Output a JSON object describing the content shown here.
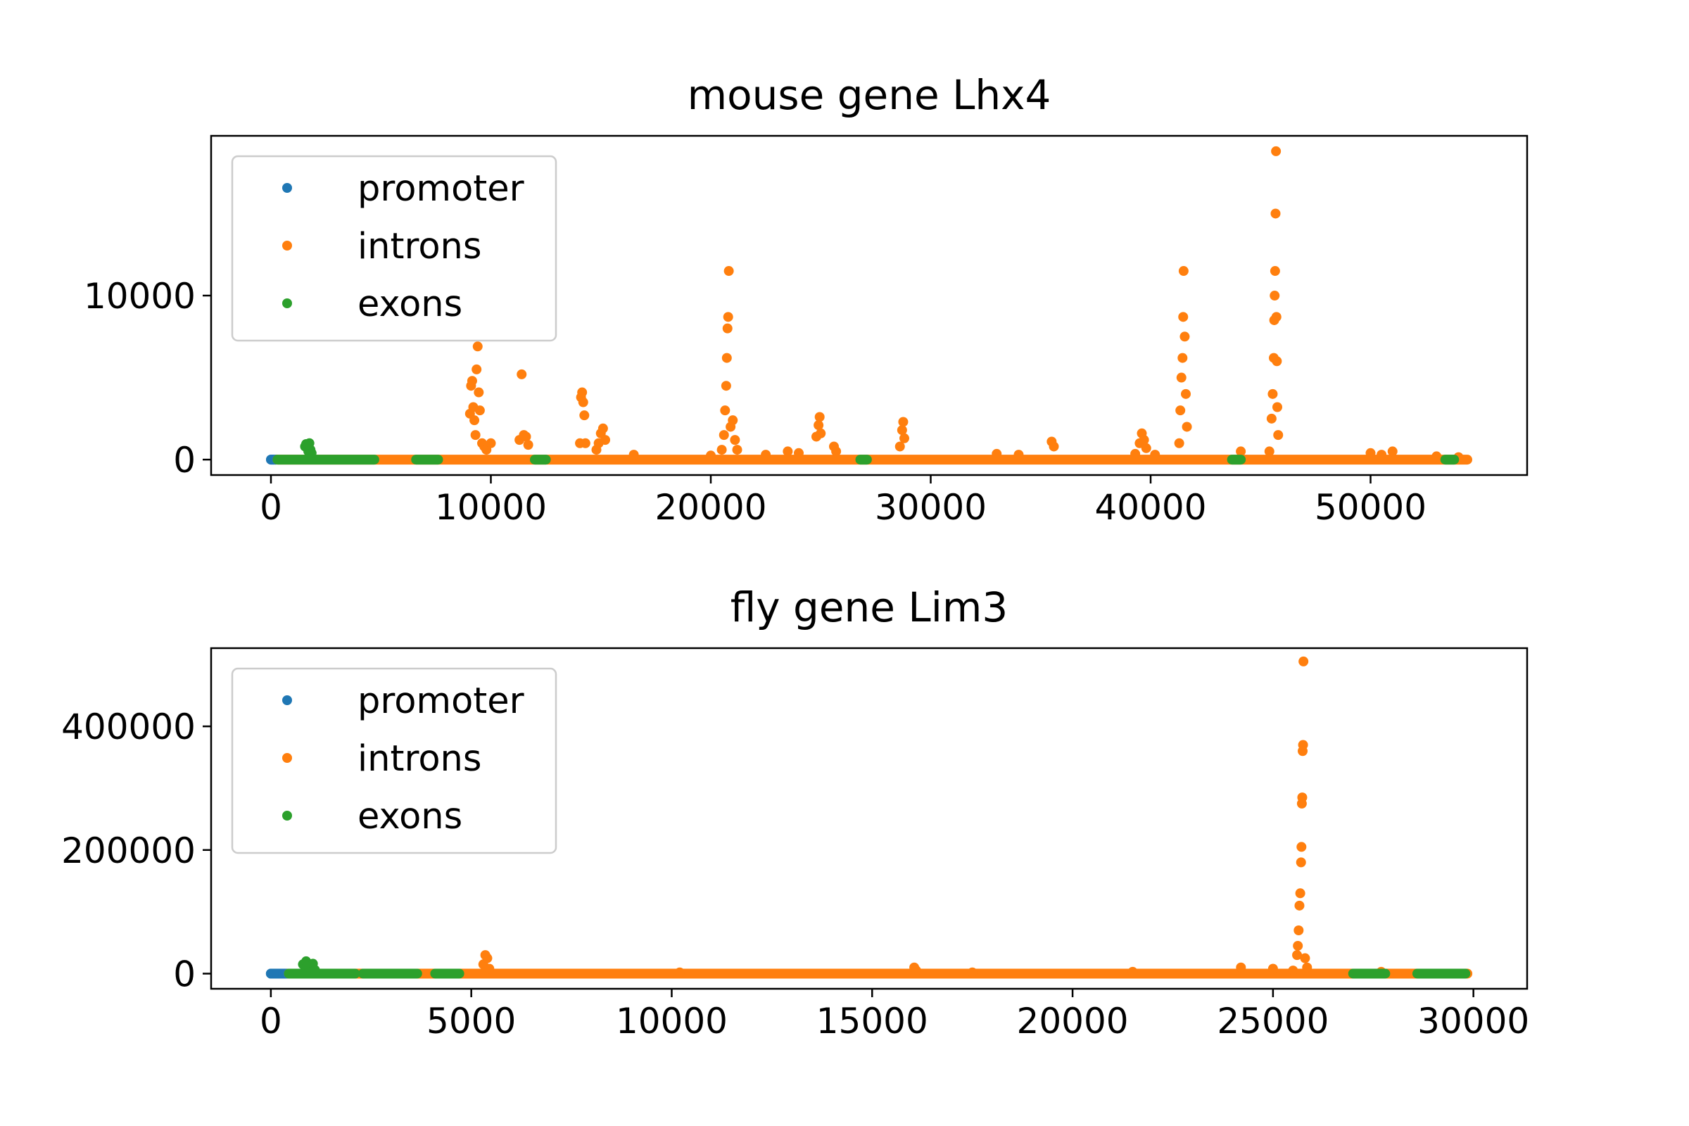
{
  "chart_data": [
    {
      "type": "scatter",
      "title": "mouse gene Lhx4",
      "xlabel": "",
      "ylabel": "",
      "xlim": [
        -2720,
        57120
      ],
      "ylim": [
        -940,
        19740
      ],
      "xticks": [
        0,
        10000,
        20000,
        30000,
        40000,
        50000
      ],
      "yticks": [
        0,
        10000
      ],
      "grid": false,
      "legend": {
        "position": "top-left",
        "entries": [
          "promoter",
          "introns",
          "exons"
        ]
      },
      "series": [
        {
          "name": "promoter",
          "color": "#1f77b4",
          "ranges": [
            [
              0,
              250
            ]
          ],
          "points": [
            [
              0,
              0
            ],
            [
              100,
              0
            ],
            [
              200,
              0
            ],
            [
              250,
              0
            ]
          ]
        },
        {
          "name": "introns",
          "color": "#ff7f0e",
          "ranges": [
            [
              300,
              54400
            ]
          ],
          "points": [
            [
              9050,
              2800
            ],
            [
              9100,
              4500
            ],
            [
              9150,
              4800
            ],
            [
              9200,
              3200
            ],
            [
              9250,
              2400
            ],
            [
              9300,
              1500
            ],
            [
              9350,
              5500
            ],
            [
              9400,
              6900
            ],
            [
              9450,
              4100
            ],
            [
              9500,
              3000
            ],
            [
              9600,
              1000
            ],
            [
              9700,
              800
            ],
            [
              9800,
              600
            ],
            [
              10000,
              1000
            ],
            [
              11300,
              1200
            ],
            [
              11400,
              5200
            ],
            [
              11500,
              1500
            ],
            [
              11600,
              1400
            ],
            [
              11700,
              900
            ],
            [
              14050,
              1000
            ],
            [
              14100,
              3800
            ],
            [
              14150,
              4100
            ],
            [
              14200,
              3500
            ],
            [
              14250,
              2700
            ],
            [
              14300,
              1000
            ],
            [
              14800,
              600
            ],
            [
              14900,
              1000
            ],
            [
              15000,
              1600
            ],
            [
              15100,
              1900
            ],
            [
              15200,
              1200
            ],
            [
              16500,
              300
            ],
            [
              20000,
              250
            ],
            [
              20500,
              600
            ],
            [
              20600,
              1500
            ],
            [
              20650,
              3000
            ],
            [
              20700,
              4500
            ],
            [
              20730,
              6200
            ],
            [
              20760,
              8000
            ],
            [
              20790,
              8700
            ],
            [
              20820,
              11500
            ],
            [
              20900,
              2000
            ],
            [
              21000,
              2400
            ],
            [
              21100,
              1200
            ],
            [
              21200,
              600
            ],
            [
              22500,
              300
            ],
            [
              23500,
              500
            ],
            [
              24000,
              400
            ],
            [
              24800,
              1400
            ],
            [
              24900,
              2100
            ],
            [
              24950,
              2600
            ],
            [
              25000,
              1600
            ],
            [
              25600,
              800
            ],
            [
              25700,
              500
            ],
            [
              28600,
              800
            ],
            [
              28700,
              1800
            ],
            [
              28750,
              2300
            ],
            [
              28800,
              1300
            ],
            [
              33000,
              350
            ],
            [
              34000,
              300
            ],
            [
              35500,
              1100
            ],
            [
              35600,
              800
            ],
            [
              39300,
              350
            ],
            [
              39500,
              1000
            ],
            [
              39600,
              1600
            ],
            [
              39700,
              1200
            ],
            [
              39800,
              700
            ],
            [
              40200,
              300
            ],
            [
              41300,
              1000
            ],
            [
              41350,
              3000
            ],
            [
              41400,
              5000
            ],
            [
              41450,
              6200
            ],
            [
              41480,
              8700
            ],
            [
              41500,
              11500
            ],
            [
              41550,
              7500
            ],
            [
              41600,
              4000
            ],
            [
              41650,
              2000
            ],
            [
              44100,
              500
            ],
            [
              45400,
              500
            ],
            [
              45500,
              2500
            ],
            [
              45550,
              4000
            ],
            [
              45600,
              6200
            ],
            [
              45620,
              8500
            ],
            [
              45640,
              10000
            ],
            [
              45660,
              11500
            ],
            [
              45680,
              15000
            ],
            [
              45700,
              18800
            ],
            [
              45720,
              8700
            ],
            [
              45740,
              6000
            ],
            [
              45760,
              3200
            ],
            [
              45800,
              1500
            ],
            [
              50000,
              400
            ],
            [
              50500,
              300
            ],
            [
              51000,
              500
            ],
            [
              53000,
              200
            ],
            [
              54000,
              150
            ]
          ]
        },
        {
          "name": "exons",
          "color": "#2ca02c",
          "ranges": [
            [
              300,
              4700
            ],
            [
              6600,
              7600
            ],
            [
              12000,
              12500
            ],
            [
              26800,
              27100
            ],
            [
              43700,
              44100
            ],
            [
              53400,
              53800
            ]
          ],
          "points": [
            [
              1550,
              800
            ],
            [
              1600,
              950
            ],
            [
              1650,
              700
            ],
            [
              1700,
              500
            ],
            [
              1750,
              1000
            ],
            [
              1800,
              600
            ],
            [
              1850,
              400
            ]
          ]
        }
      ]
    },
    {
      "type": "scatter",
      "title": "fly gene Lim3",
      "xlabel": "",
      "ylabel": "",
      "xlim": [
        -1490,
        31340
      ],
      "ylim": [
        -24500,
        526500
      ],
      "xticks": [
        0,
        5000,
        10000,
        15000,
        20000,
        25000,
        30000
      ],
      "yticks": [
        0,
        200000,
        400000
      ],
      "grid": false,
      "legend": {
        "position": "top-left",
        "entries": [
          "promoter",
          "introns",
          "exons"
        ]
      },
      "series": [
        {
          "name": "promoter",
          "color": "#1f77b4",
          "ranges": [
            [
              0,
              450
            ]
          ],
          "points": [
            [
              0,
              0
            ],
            [
              150,
              0
            ],
            [
              300,
              0
            ],
            [
              450,
              0
            ]
          ]
        },
        {
          "name": "introns",
          "color": "#ff7f0e",
          "ranges": [
            [
              450,
              29850
            ]
          ],
          "points": [
            [
              5300,
              15000
            ],
            [
              5350,
              30000
            ],
            [
              5400,
              25000
            ],
            [
              5450,
              8000
            ],
            [
              10200,
              2000
            ],
            [
              16050,
              10000
            ],
            [
              16100,
              5000
            ],
            [
              17500,
              2000
            ],
            [
              21500,
              3000
            ],
            [
              24200,
              10000
            ],
            [
              25000,
              8000
            ],
            [
              25500,
              5000
            ],
            [
              25600,
              30000
            ],
            [
              25620,
              45000
            ],
            [
              25640,
              70000
            ],
            [
              25660,
              110000
            ],
            [
              25680,
              130000
            ],
            [
              25700,
              180000
            ],
            [
              25710,
              205000
            ],
            [
              25720,
              275000
            ],
            [
              25730,
              285000
            ],
            [
              25740,
              360000
            ],
            [
              25750,
              370000
            ],
            [
              25760,
              505000
            ],
            [
              25800,
              25000
            ],
            [
              25850,
              10000
            ],
            [
              27700,
              3000
            ]
          ]
        },
        {
          "name": "exons",
          "color": "#2ca02c",
          "ranges": [
            [
              450,
              2100
            ],
            [
              2300,
              3650
            ],
            [
              4100,
              4700
            ],
            [
              27000,
              27800
            ],
            [
              28600,
              29800
            ]
          ],
          "points": [
            [
              800,
              15000
            ],
            [
              880,
              20000
            ],
            [
              950,
              10000
            ],
            [
              1050,
              16000
            ],
            [
              1100,
              6000
            ]
          ]
        }
      ]
    }
  ]
}
